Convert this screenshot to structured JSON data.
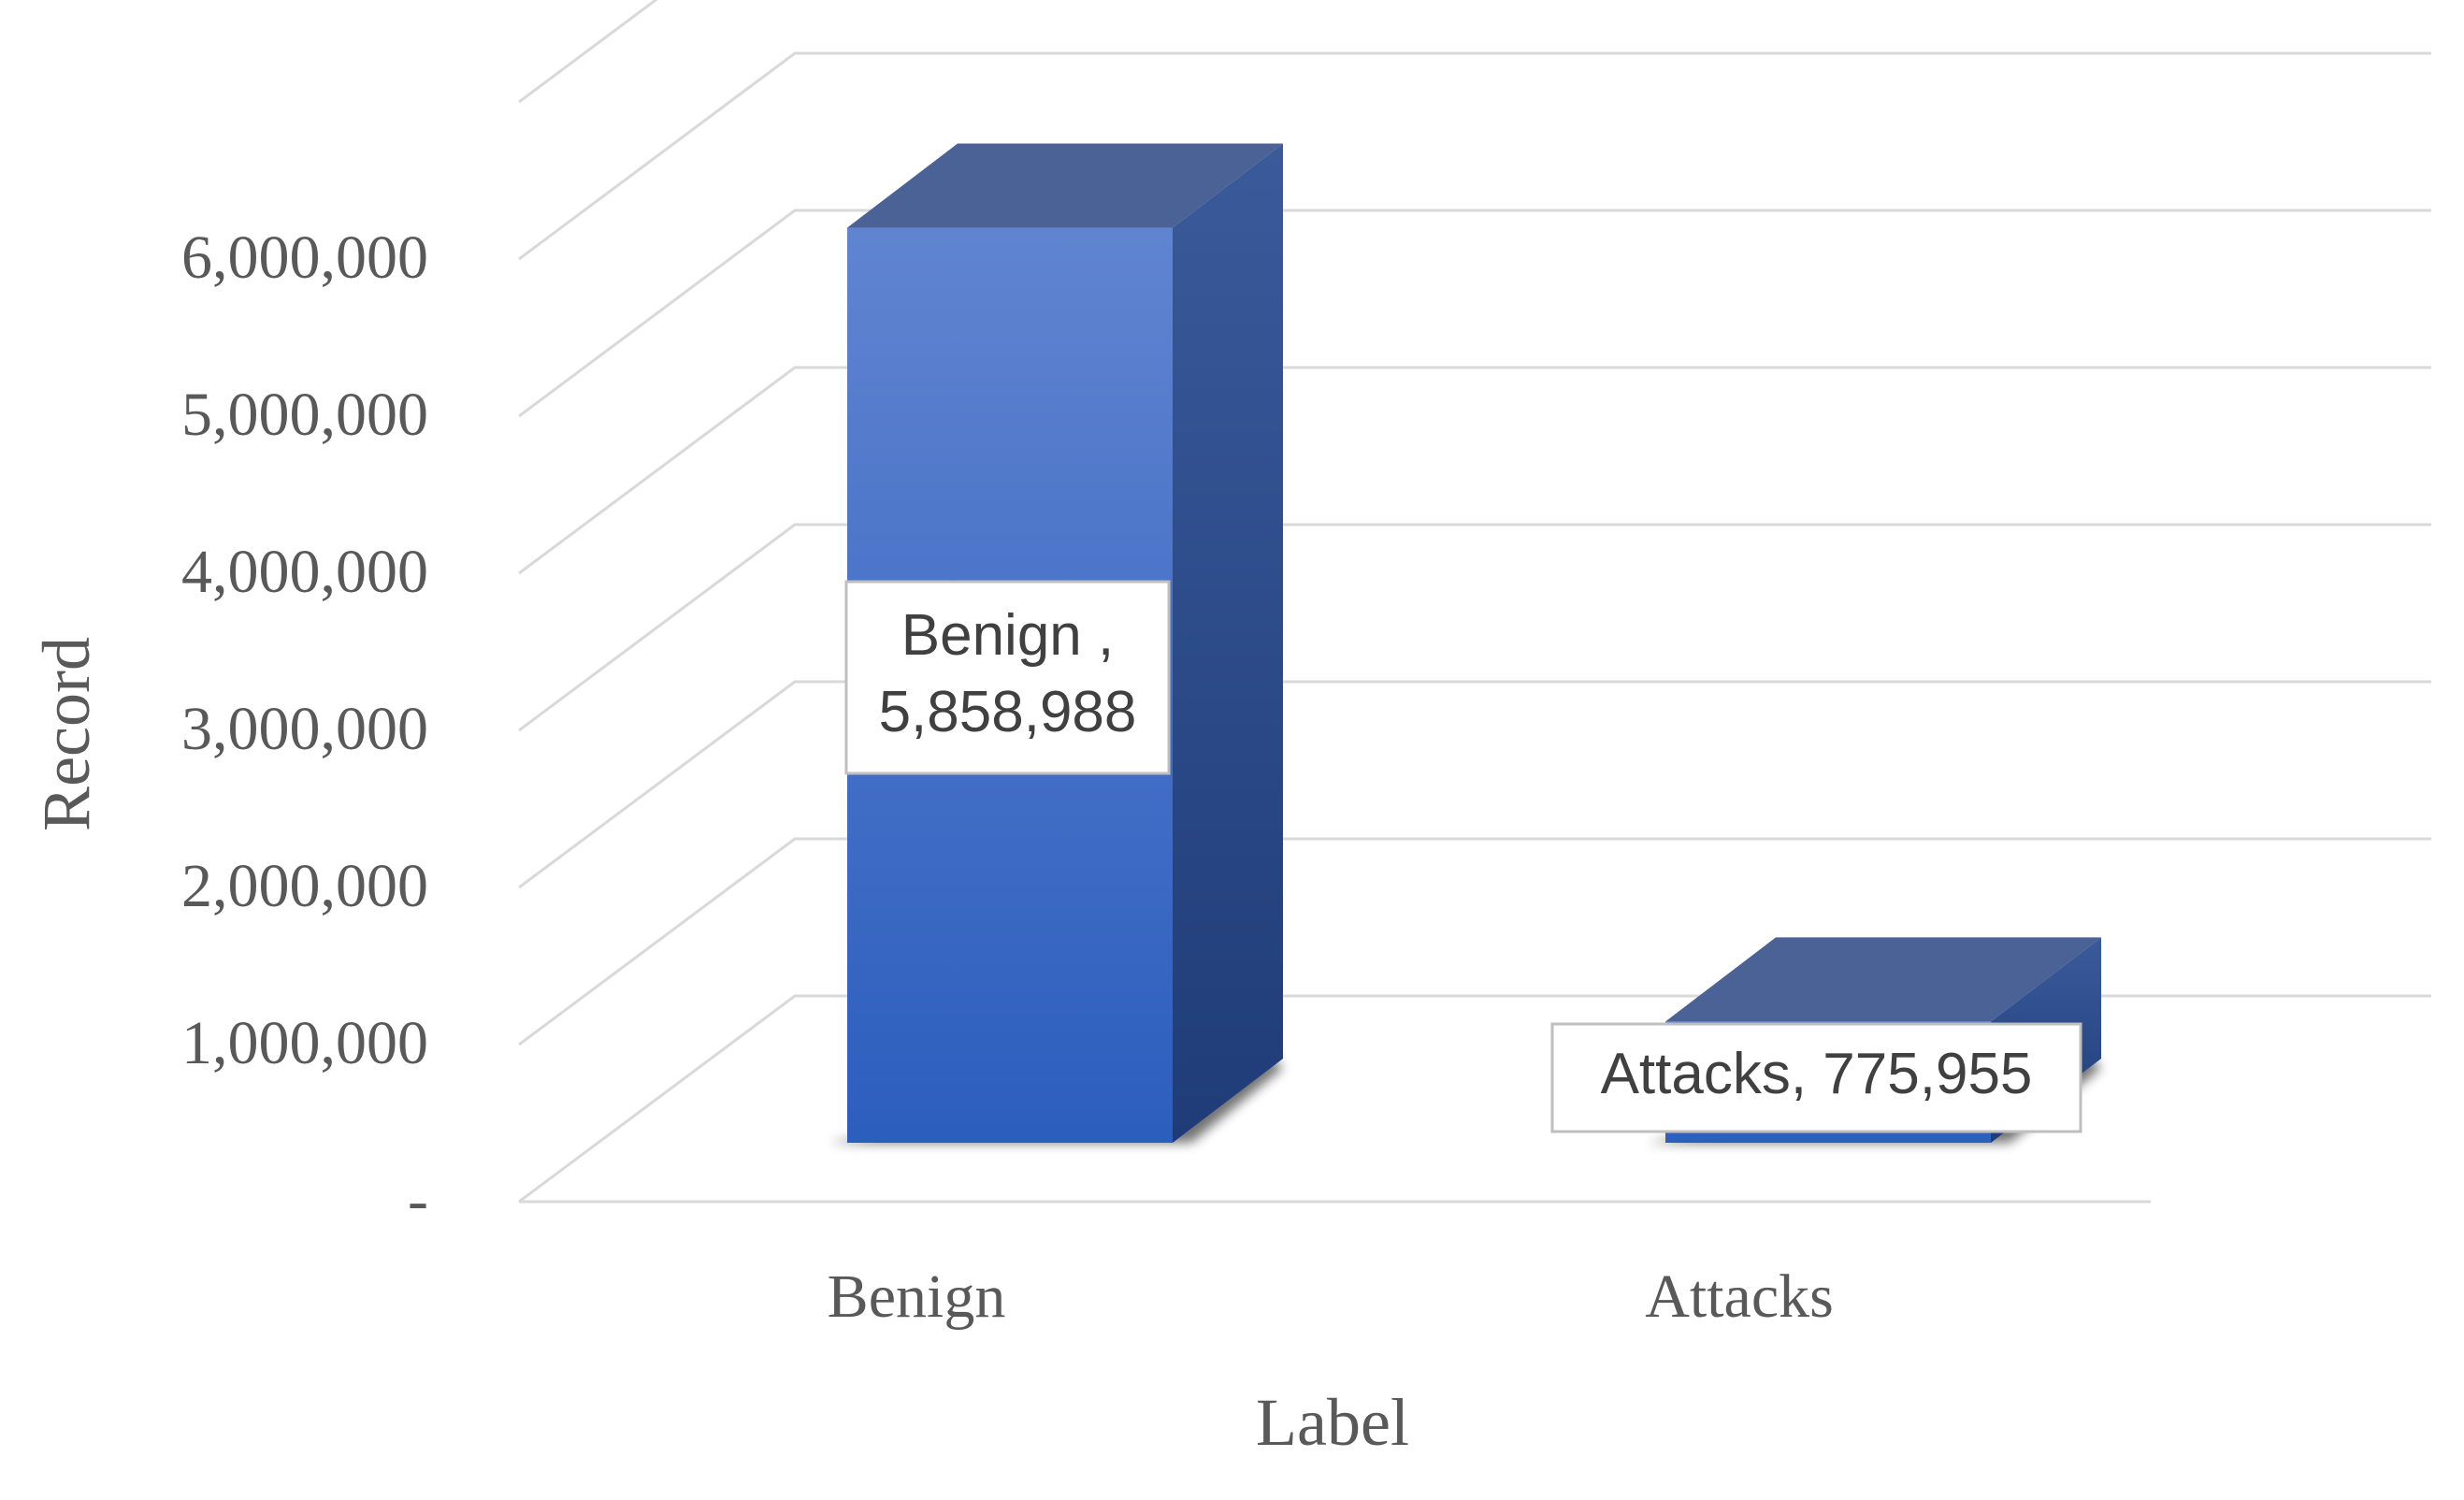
{
  "chart_data": {
    "type": "bar",
    "style": "3d-column",
    "categories": [
      "Benign",
      "Attacks"
    ],
    "values": [
      5858988,
      775955
    ],
    "data_labels": [
      {
        "lines": [
          "Benign ,",
          "5,858,988"
        ]
      },
      {
        "lines": [
          "Attacks,  775,955"
        ]
      }
    ],
    "xlabel": "Label",
    "ylabel": "Record",
    "ylim": [
      0,
      7000000
    ],
    "yticks": [
      0,
      1000000,
      2000000,
      3000000,
      4000000,
      5000000,
      6000000
    ],
    "ytick_labels": [
      "-",
      "1,000,000",
      "2,000,000",
      "3,000,000",
      "4,000,000",
      "5,000,000",
      "6,000,000"
    ],
    "grid": true,
    "legend": "none",
    "colors": {
      "bar_front_top": "#6084d0",
      "bar_front_bottom": "#2c5ebe",
      "bar_top": "#4a6296",
      "bar_side_top": "#3a5a9a",
      "bar_side_bottom": "#1f3c78",
      "grid": "#d9d9d9",
      "text": "#595959"
    }
  }
}
